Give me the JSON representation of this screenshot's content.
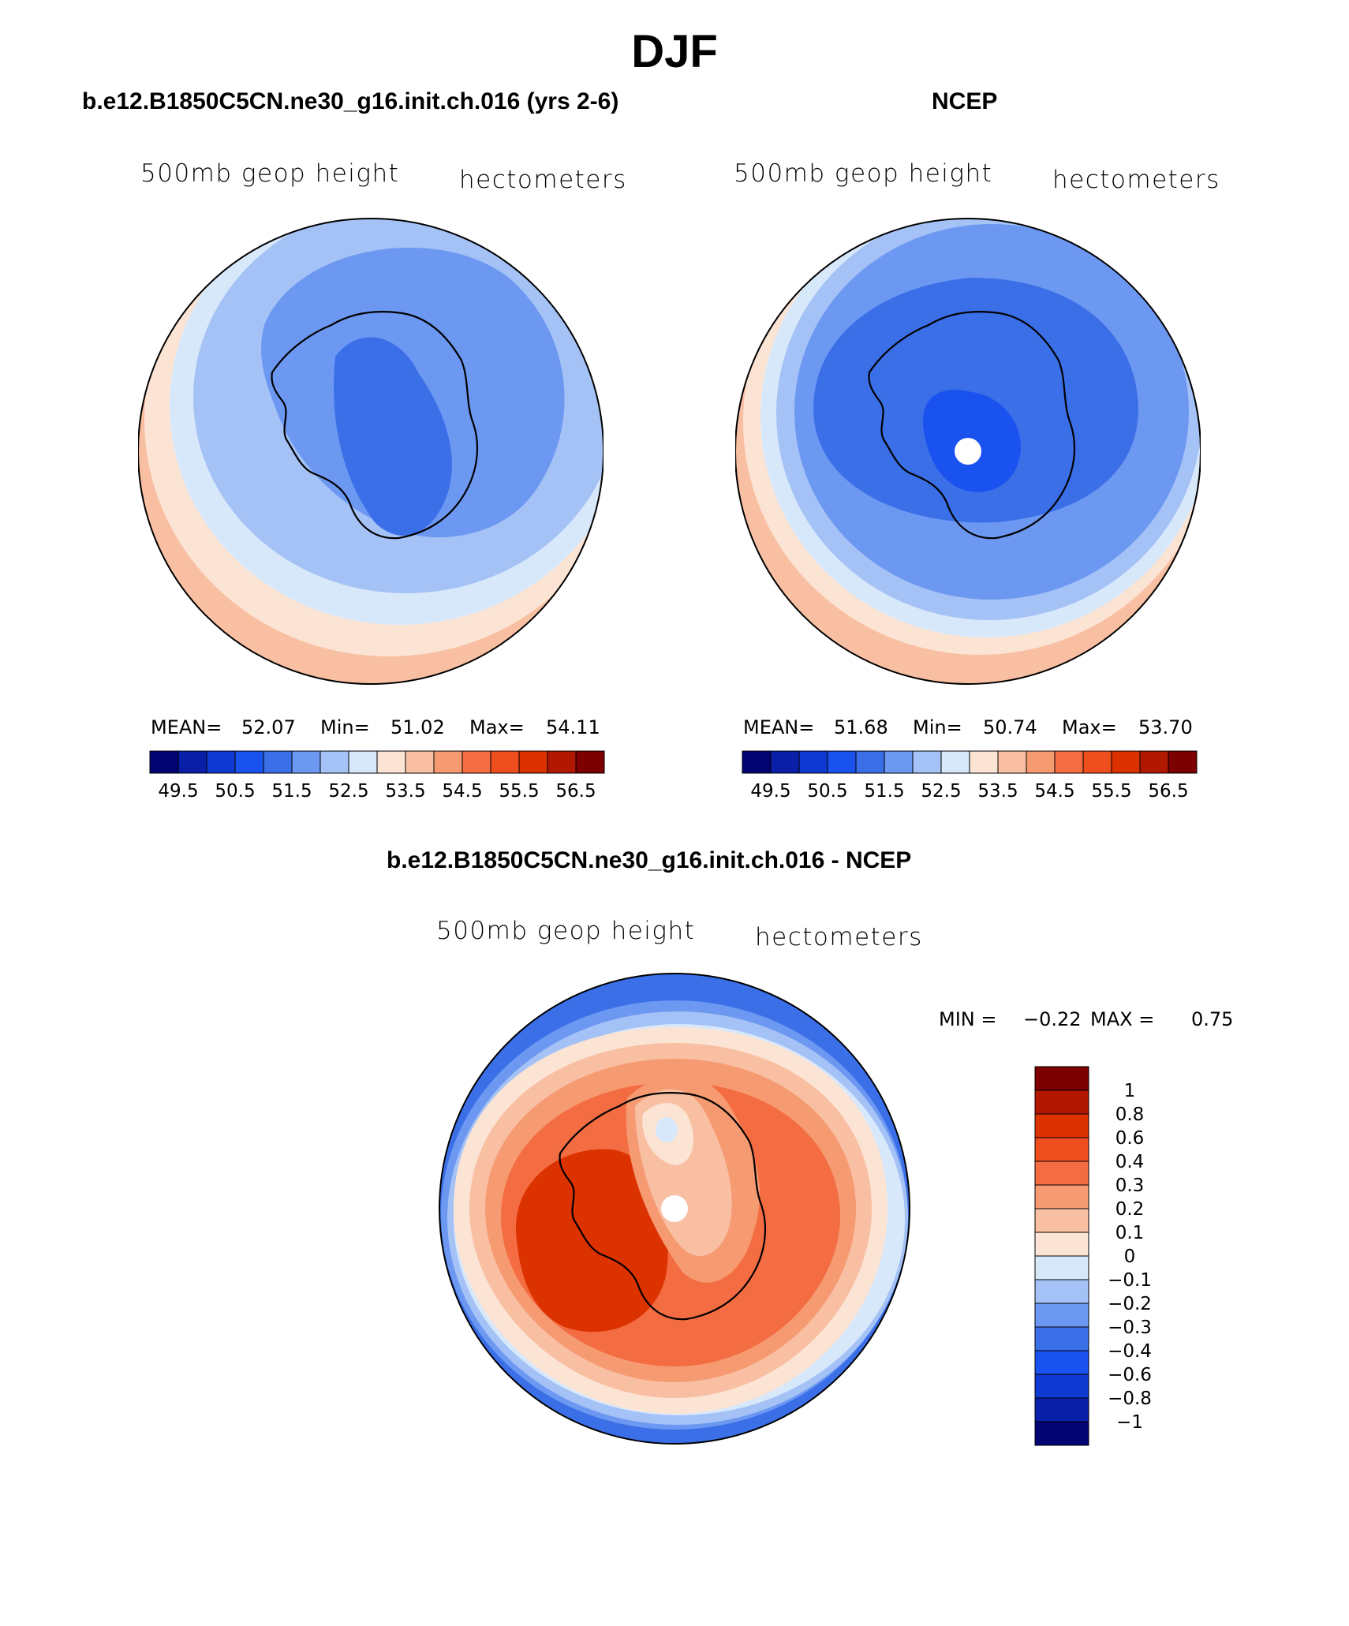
{
  "page_title": "DJF",
  "panels": [
    {
      "title": "b.e12.B1850C5CN.ne30_g16.init.ch.016 (yrs 2-6)",
      "left_label": "500mb geop height",
      "right_label": "hectometers",
      "stats": {
        "mean_label": "MEAN=",
        "mean": "52.07",
        "min_label": "Min=",
        "min": "51.02",
        "max_label": "Max=",
        "max": "54.11"
      }
    },
    {
      "title": "NCEP",
      "left_label": "500mb geop height",
      "right_label": "hectometers",
      "stats": {
        "mean_label": "MEAN=",
        "mean": "51.68",
        "min_label": "Min=",
        "min": "50.74",
        "max_label": "Max=",
        "max": "53.70"
      }
    },
    {
      "title": "b.e12.B1850C5CN.ne30_g16.init.ch.016 - NCEP",
      "left_label": "500mb geop height",
      "right_label": "hectometers",
      "stats": {
        "min_label": "MIN =",
        "min": "−0.22",
        "max_label": "MAX =",
        "max": "0.75"
      }
    }
  ],
  "chart_data": [
    {
      "type": "heatmap",
      "title": "b.e12.B1850C5CN.ne30_g16.init.ch.016 (yrs 2-6)",
      "projection": "south-polar stereographic",
      "variable": "500mb geop height",
      "units": "hectometers",
      "mean": 52.07,
      "min": 51.02,
      "max": 54.11,
      "colorbar": {
        "orientation": "horizontal",
        "levels": [
          49.5,
          50,
          50.5,
          51,
          51.5,
          52,
          52.5,
          53,
          53.5,
          54,
          54.5,
          55,
          55.5,
          56,
          56.5
        ],
        "tick_labels": [
          "49.5",
          "50.5",
          "51.5",
          "52.5",
          "53.5",
          "54.5",
          "55.5",
          "56.5"
        ],
        "colors": [
          "#020474",
          "#0A1FA8",
          "#0F39D0",
          "#1A52F0",
          "#3A6FE8",
          "#6C98F2",
          "#A5C2F6",
          "#D8E8FB",
          "#FCE4D5",
          "#F9BFA3",
          "#F69A72",
          "#F46D42",
          "#EE4D1E",
          "#DC3200",
          "#B21800",
          "#7D0000"
        ]
      }
    },
    {
      "type": "heatmap",
      "title": "NCEP",
      "projection": "south-polar stereographic",
      "variable": "500mb geop height",
      "units": "hectometers",
      "mean": 51.68,
      "min": 50.74,
      "max": 53.7,
      "colorbar": {
        "orientation": "horizontal",
        "levels": [
          49.5,
          50,
          50.5,
          51,
          51.5,
          52,
          52.5,
          53,
          53.5,
          54,
          54.5,
          55,
          55.5,
          56,
          56.5
        ],
        "tick_labels": [
          "49.5",
          "50.5",
          "51.5",
          "52.5",
          "53.5",
          "54.5",
          "55.5",
          "56.5"
        ],
        "colors": [
          "#020474",
          "#0A1FA8",
          "#0F39D0",
          "#1A52F0",
          "#3A6FE8",
          "#6C98F2",
          "#A5C2F6",
          "#D8E8FB",
          "#FCE4D5",
          "#F9BFA3",
          "#F69A72",
          "#F46D42",
          "#EE4D1E",
          "#DC3200",
          "#B21800",
          "#7D0000"
        ]
      }
    },
    {
      "type": "heatmap",
      "title": "b.e12.B1850C5CN.ne30_g16.init.ch.016 - NCEP",
      "projection": "south-polar stereographic",
      "variable": "500mb geop height",
      "units": "hectometers",
      "min": -0.22,
      "max": 0.75,
      "colorbar": {
        "orientation": "vertical",
        "levels": [
          1,
          0.8,
          0.6,
          0.4,
          0.3,
          0.2,
          0.1,
          0,
          -0.1,
          -0.2,
          -0.3,
          -0.4,
          -0.6,
          -0.8,
          -1
        ],
        "tick_labels": [
          "1",
          "0.8",
          "0.6",
          "0.4",
          "0.3",
          "0.2",
          "0.1",
          "0",
          "−0.1",
          "−0.2",
          "−0.3",
          "−0.4",
          "−0.6",
          "−0.8",
          "−1"
        ],
        "colors": [
          "#7D0000",
          "#B21800",
          "#DC3200",
          "#EE4D1E",
          "#F46D42",
          "#F69A72",
          "#F9BFA3",
          "#FCE4D5",
          "#D8E8FB",
          "#A5C2F6",
          "#6C98F2",
          "#3A6FE8",
          "#1A52F0",
          "#0F39D0",
          "#0A1FA8",
          "#020474"
        ]
      }
    }
  ]
}
